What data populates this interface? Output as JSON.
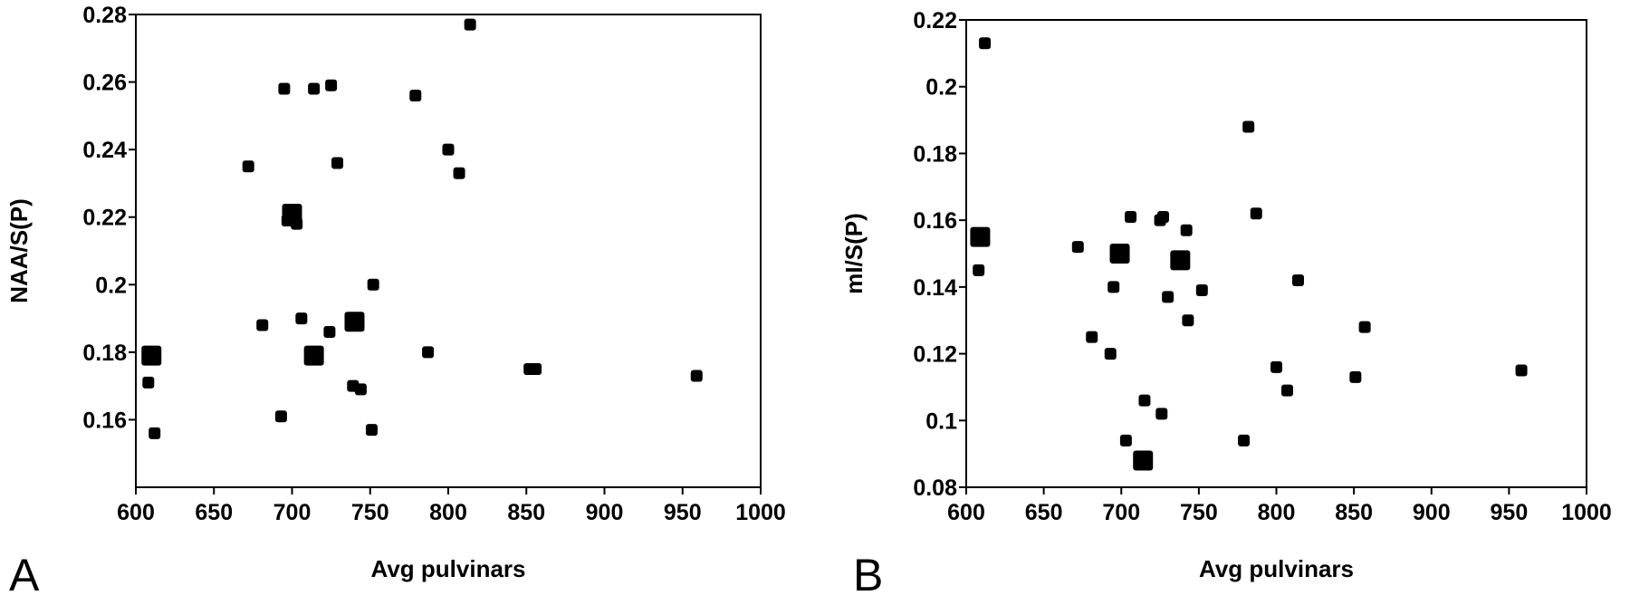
{
  "chart_data": [
    {
      "type": "scatter",
      "panel_label": "A",
      "xlabel": "Avg pulvinars",
      "ylabel": "NAA/S(P)",
      "xlim": [
        600,
        1000
      ],
      "ylim": [
        0.14,
        0.28
      ],
      "x_ticks": [
        600,
        650,
        700,
        750,
        800,
        850,
        900,
        950,
        1000
      ],
      "x_tick_labels": [
        "600",
        "650",
        "700",
        "750",
        "800",
        "850",
        "900",
        "950",
        "1000"
      ],
      "y_ticks": [
        0.16,
        0.18,
        0.2,
        0.22,
        0.24,
        0.26,
        0.28
      ],
      "y_tick_labels": [
        "0.16",
        "0.18",
        "0.2",
        "0.22",
        "0.24",
        "0.26",
        "0.28"
      ],
      "grid": false,
      "marker_color": "#000000",
      "points": [
        {
          "x": 814,
          "y": 0.277,
          "size": "small"
        },
        {
          "x": 695,
          "y": 0.258,
          "size": "small"
        },
        {
          "x": 714,
          "y": 0.258,
          "size": "small"
        },
        {
          "x": 725,
          "y": 0.259,
          "size": "small"
        },
        {
          "x": 779,
          "y": 0.256,
          "size": "small"
        },
        {
          "x": 800,
          "y": 0.24,
          "size": "small"
        },
        {
          "x": 807,
          "y": 0.233,
          "size": "small"
        },
        {
          "x": 672,
          "y": 0.235,
          "size": "small"
        },
        {
          "x": 729,
          "y": 0.236,
          "size": "small"
        },
        {
          "x": 700,
          "y": 0.221,
          "size": "large"
        },
        {
          "x": 697,
          "y": 0.219,
          "size": "small"
        },
        {
          "x": 703,
          "y": 0.218,
          "size": "small"
        },
        {
          "x": 752,
          "y": 0.2,
          "size": "small"
        },
        {
          "x": 706,
          "y": 0.19,
          "size": "small"
        },
        {
          "x": 740,
          "y": 0.189,
          "size": "large"
        },
        {
          "x": 681,
          "y": 0.188,
          "size": "small"
        },
        {
          "x": 724,
          "y": 0.186,
          "size": "small"
        },
        {
          "x": 610,
          "y": 0.179,
          "size": "large"
        },
        {
          "x": 714,
          "y": 0.179,
          "size": "large"
        },
        {
          "x": 787,
          "y": 0.18,
          "size": "small"
        },
        {
          "x": 852,
          "y": 0.175,
          "size": "small"
        },
        {
          "x": 856,
          "y": 0.175,
          "size": "small"
        },
        {
          "x": 959,
          "y": 0.173,
          "size": "small"
        },
        {
          "x": 608,
          "y": 0.171,
          "size": "small"
        },
        {
          "x": 739,
          "y": 0.17,
          "size": "small"
        },
        {
          "x": 744,
          "y": 0.169,
          "size": "small"
        },
        {
          "x": 693,
          "y": 0.161,
          "size": "small"
        },
        {
          "x": 612,
          "y": 0.156,
          "size": "small"
        },
        {
          "x": 751,
          "y": 0.157,
          "size": "small"
        }
      ]
    },
    {
      "type": "scatter",
      "panel_label": "B",
      "xlabel": "Avg pulvinars",
      "ylabel": "mI/S(P)",
      "xlim": [
        600,
        1000
      ],
      "ylim": [
        0.08,
        0.22
      ],
      "x_ticks": [
        600,
        650,
        700,
        750,
        800,
        850,
        900,
        950,
        1000
      ],
      "x_tick_labels": [
        "600",
        "650",
        "700",
        "750",
        "800",
        "850",
        "900",
        "950",
        "1000"
      ],
      "y_ticks": [
        0.08,
        0.1,
        0.12,
        0.14,
        0.16,
        0.18,
        0.2,
        0.22
      ],
      "y_tick_labels": [
        "0.08",
        "0.1",
        "0.12",
        "0.14",
        "0.16",
        "0.18",
        "0.2",
        "0.22"
      ],
      "grid": false,
      "marker_color": "#000000",
      "points": [
        {
          "x": 612,
          "y": 0.213,
          "size": "small"
        },
        {
          "x": 782,
          "y": 0.188,
          "size": "small"
        },
        {
          "x": 787,
          "y": 0.162,
          "size": "small"
        },
        {
          "x": 706,
          "y": 0.161,
          "size": "small"
        },
        {
          "x": 725,
          "y": 0.16,
          "size": "small"
        },
        {
          "x": 727,
          "y": 0.161,
          "size": "small"
        },
        {
          "x": 742,
          "y": 0.157,
          "size": "small"
        },
        {
          "x": 609,
          "y": 0.155,
          "size": "large"
        },
        {
          "x": 672,
          "y": 0.152,
          "size": "small"
        },
        {
          "x": 699,
          "y": 0.15,
          "size": "large"
        },
        {
          "x": 738,
          "y": 0.148,
          "size": "large"
        },
        {
          "x": 608,
          "y": 0.145,
          "size": "small"
        },
        {
          "x": 814,
          "y": 0.142,
          "size": "small"
        },
        {
          "x": 695,
          "y": 0.14,
          "size": "small"
        },
        {
          "x": 752,
          "y": 0.139,
          "size": "small"
        },
        {
          "x": 730,
          "y": 0.137,
          "size": "small"
        },
        {
          "x": 743,
          "y": 0.13,
          "size": "small"
        },
        {
          "x": 857,
          "y": 0.128,
          "size": "small"
        },
        {
          "x": 681,
          "y": 0.125,
          "size": "small"
        },
        {
          "x": 693,
          "y": 0.12,
          "size": "small"
        },
        {
          "x": 800,
          "y": 0.116,
          "size": "small"
        },
        {
          "x": 958,
          "y": 0.115,
          "size": "small"
        },
        {
          "x": 851,
          "y": 0.113,
          "size": "small"
        },
        {
          "x": 807,
          "y": 0.109,
          "size": "small"
        },
        {
          "x": 715,
          "y": 0.106,
          "size": "small"
        },
        {
          "x": 726,
          "y": 0.102,
          "size": "small"
        },
        {
          "x": 703,
          "y": 0.094,
          "size": "small"
        },
        {
          "x": 779,
          "y": 0.094,
          "size": "small"
        },
        {
          "x": 714,
          "y": 0.088,
          "size": "large"
        }
      ]
    }
  ]
}
